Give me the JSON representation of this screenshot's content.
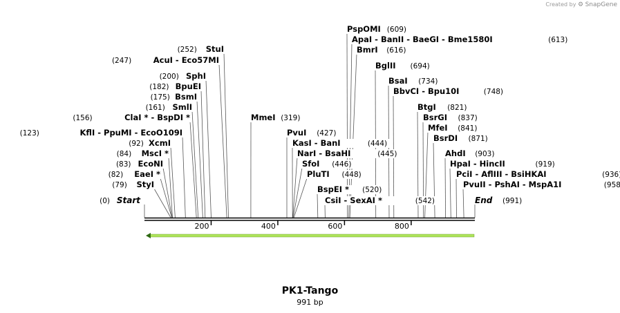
{
  "credit": {
    "prefix": "Created by",
    "brand": "SnapGene"
  },
  "sequence": {
    "name": "PK1-Tango",
    "length_label": "991 bp",
    "length": 991
  },
  "axis": {
    "ticks": [
      200,
      400,
      600,
      800
    ]
  },
  "ends": {
    "start": {
      "pos": "(0)",
      "label": "Start",
      "site": 0
    },
    "end": {
      "pos": "(991)",
      "label": "End",
      "site": 991
    }
  },
  "enzymes": [
    {
      "pos": "(609)",
      "names": [
        "PspOMI"
      ],
      "site": 609
    },
    {
      "pos": "(613)",
      "names": [
        "ApaI",
        "BanII",
        "BaeGI",
        "Bme1580I"
      ],
      "site": 613
    },
    {
      "pos": "(616)",
      "names": [
        "BmrI"
      ],
      "site": 616
    },
    {
      "pos": "(694)",
      "names": [
        "BglII"
      ],
      "site": 694
    },
    {
      "pos": "(734)",
      "names": [
        "BsaI"
      ],
      "site": 734
    },
    {
      "pos": "(748)",
      "names": [
        "BbvCI",
        "Bpu10I"
      ],
      "site": 748
    },
    {
      "pos": "(821)",
      "names": [
        "BtgI"
      ],
      "site": 821
    },
    {
      "pos": "(837)",
      "names": [
        "BsrGI"
      ],
      "site": 837
    },
    {
      "pos": "(841)",
      "names": [
        "MfeI"
      ],
      "site": 841
    },
    {
      "pos": "(871)",
      "names": [
        "BsrDI"
      ],
      "site": 871
    },
    {
      "pos": "(903)",
      "names": [
        "AhdI"
      ],
      "site": 903
    },
    {
      "pos": "(919)",
      "names": [
        "HpaI",
        "HincII"
      ],
      "site": 919
    },
    {
      "pos": "(936)",
      "names": [
        "PciI",
        "AflIII",
        "BsiHKAI"
      ],
      "site": 936
    },
    {
      "pos": "(958)",
      "names": [
        "PvuII",
        "PshAI",
        "MspA1I"
      ],
      "site": 958
    },
    {
      "pos": "(252)",
      "names": [
        "StuI"
      ],
      "site": 252
    },
    {
      "pos": "(247)",
      "names": [
        "AcuI",
        "Eco57MI"
      ],
      "site": 247
    },
    {
      "pos": "(200)",
      "names": [
        "SphI"
      ],
      "site": 200
    },
    {
      "pos": "(182)",
      "names": [
        "BpuEI"
      ],
      "site": 182
    },
    {
      "pos": "(175)",
      "names": [
        "BsmI"
      ],
      "site": 175
    },
    {
      "pos": "(161)",
      "names": [
        "SmlI"
      ],
      "site": 161
    },
    {
      "pos": "(156)",
      "names": [
        "ClaI *",
        "BspDI *"
      ],
      "site": 156
    },
    {
      "pos": "(123)",
      "names": [
        "KflI",
        "PpuMI",
        "EcoO109I"
      ],
      "site": 123
    },
    {
      "pos": "(92)",
      "names": [
        "XcmI"
      ],
      "site": 92
    },
    {
      "pos": "(84)",
      "names": [
        "MscI *"
      ],
      "site": 84
    },
    {
      "pos": "(83)",
      "names": [
        "EcoNI"
      ],
      "site": 83
    },
    {
      "pos": "(82)",
      "names": [
        "EaeI *"
      ],
      "site": 82
    },
    {
      "pos": "(79)",
      "names": [
        "StyI"
      ],
      "site": 79
    },
    {
      "pos": "(319)",
      "names": [
        "MmeI"
      ],
      "site": 319
    },
    {
      "pos": "(427)",
      "names": [
        "PvuI"
      ],
      "site": 427
    },
    {
      "pos": "(444)",
      "names": [
        "KasI",
        "BanI"
      ],
      "site": 444
    },
    {
      "pos": "(445)",
      "names": [
        "NarI",
        "BsaHI"
      ],
      "site": 445
    },
    {
      "pos": "(446)",
      "names": [
        "SfoI"
      ],
      "site": 446
    },
    {
      "pos": "(448)",
      "names": [
        "PluTI"
      ],
      "site": 448
    },
    {
      "pos": "(520)",
      "names": [
        "BspEI *"
      ],
      "site": 520
    },
    {
      "pos": "(542)",
      "names": [
        "CsiI",
        "SexAI *"
      ],
      "site": 542
    }
  ],
  "colors": {
    "feature": "#aee45a",
    "feature_border": "#5a8a1e",
    "arrow": "#2f6a12"
  }
}
